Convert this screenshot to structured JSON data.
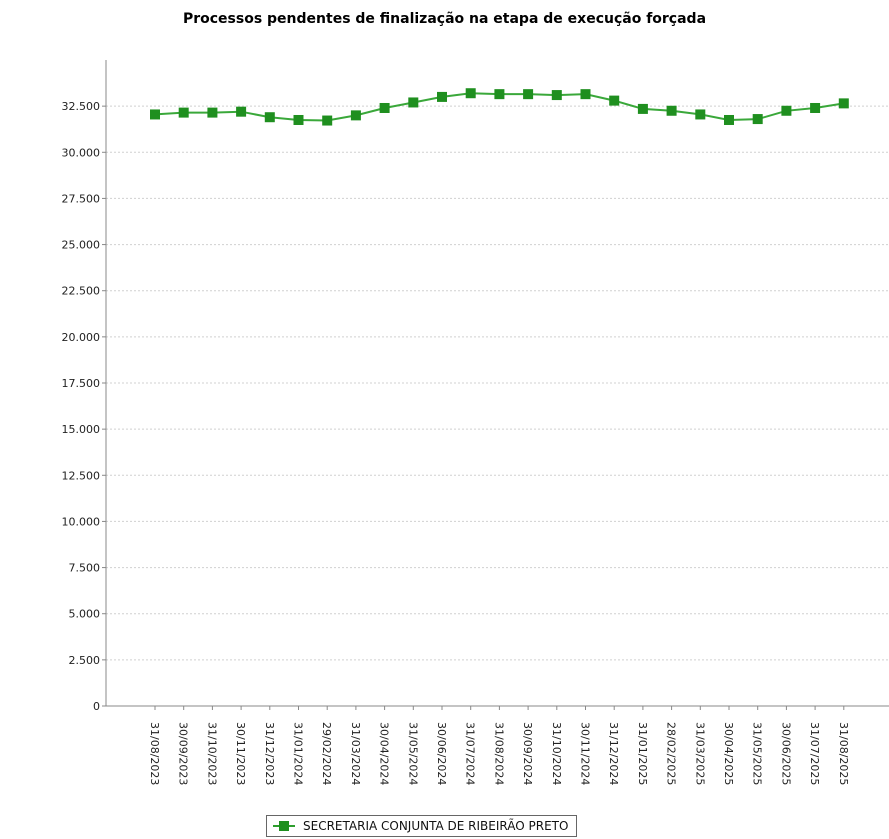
{
  "chart_data": {
    "type": "line",
    "title": "Processos pendentes de finalização na etapa de execução forçada",
    "xlabel": "",
    "ylabel": "",
    "ylim": [
      0,
      35000
    ],
    "yticks": [
      0,
      2500,
      5000,
      7500,
      10000,
      12500,
      15000,
      17500,
      20000,
      22500,
      25000,
      27500,
      30000,
      32500
    ],
    "ytick_labels": [
      "0",
      "2.500",
      "5.000",
      "7.500",
      "10.000",
      "12.500",
      "15.000",
      "17.500",
      "20.000",
      "22.500",
      "25.000",
      "27.500",
      "30.000",
      "32.500"
    ],
    "grid": true,
    "legend_position": "bottom",
    "color": "#1f8f1f",
    "categories": [
      "31/08/2023",
      "30/09/2023",
      "31/10/2023",
      "30/11/2023",
      "31/12/2023",
      "31/01/2024",
      "29/02/2024",
      "31/03/2024",
      "30/04/2024",
      "31/05/2024",
      "30/06/2024",
      "31/07/2024",
      "31/08/2024",
      "30/09/2024",
      "31/10/2024",
      "30/11/2024",
      "31/12/2024",
      "31/01/2025",
      "28/02/2025",
      "31/03/2025",
      "30/04/2025",
      "31/05/2025",
      "30/06/2025",
      "31/07/2025",
      "31/08/2025"
    ],
    "series": [
      {
        "name": "SECRETARIA CONJUNTA DE RIBEIRÃO PRETO",
        "values": [
          32050,
          32150,
          32150,
          32200,
          31900,
          31750,
          31720,
          32000,
          32400,
          32700,
          33000,
          33200,
          33150,
          33150,
          33100,
          33150,
          32800,
          32350,
          32250,
          32050,
          31750,
          31800,
          32250,
          32400,
          32650
        ]
      }
    ]
  }
}
